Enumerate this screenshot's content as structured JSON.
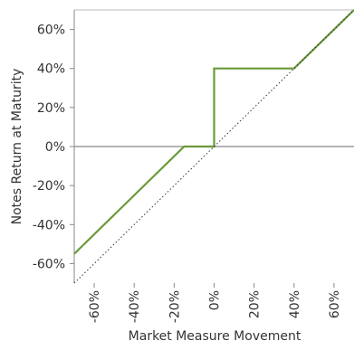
{
  "chart_data": {
    "type": "line",
    "xlabel": "Market Measure Movement",
    "ylabel": "Notes Return at Maturity",
    "xlim": [
      -70,
      70
    ],
    "ylim": [
      -70,
      70
    ],
    "x_ticks": [
      -60,
      -40,
      -20,
      0,
      20,
      40,
      60
    ],
    "y_ticks": [
      60,
      40,
      20,
      0,
      -20,
      -40,
      -60
    ],
    "x_tick_labels": [
      "-60%",
      "-40%",
      "-20%",
      "0%",
      "20%",
      "40%",
      "60%"
    ],
    "y_tick_labels": [
      "60%",
      "40%",
      "20%",
      "0%",
      "-20%",
      "-40%",
      "-60%"
    ],
    "grid": false,
    "series": [
      {
        "style": "solid",
        "color": "#6a9a3a",
        "points": [
          [
            -70,
            -55
          ],
          [
            -15,
            0
          ],
          [
            0,
            0
          ],
          [
            0,
            40
          ],
          [
            40,
            40
          ],
          [
            70,
            70
          ]
        ]
      },
      {
        "style": "dotted",
        "color": "#333333",
        "points": [
          [
            -70,
            -70
          ],
          [
            70,
            70
          ]
        ]
      }
    ],
    "reference_lines": [
      {
        "axis": "y",
        "value": 0,
        "color": "#888888"
      }
    ]
  }
}
